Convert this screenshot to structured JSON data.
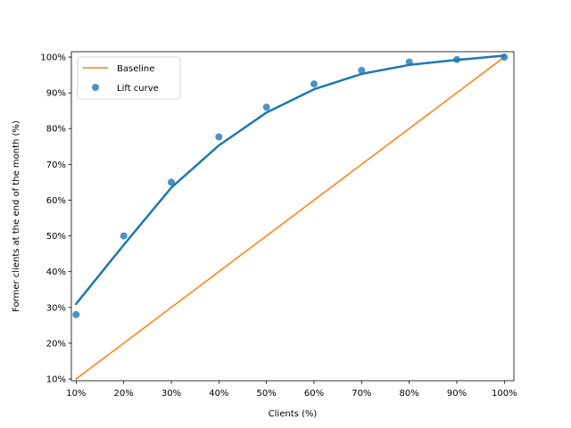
{
  "chart_data": {
    "type": "scatter",
    "xlabel": "Clients (%)",
    "ylabel": "Former clients at the end of the month (%)",
    "xlim": [
      9,
      102
    ],
    "ylim": [
      9.5,
      101.5
    ],
    "xticks": [
      10,
      20,
      30,
      40,
      50,
      60,
      70,
      80,
      90,
      100
    ],
    "yticks": [
      10,
      20,
      30,
      40,
      50,
      60,
      70,
      80,
      90,
      100
    ],
    "xtick_labels": [
      "10%",
      "20%",
      "30%",
      "40%",
      "50%",
      "60%",
      "70%",
      "80%",
      "90%",
      "100%"
    ],
    "ytick_labels": [
      "10%",
      "20%",
      "30%",
      "40%",
      "50%",
      "60%",
      "70%",
      "80%",
      "90%",
      "100%"
    ],
    "grid": false,
    "legend_position": "top-left",
    "series": [
      {
        "name": "Baseline",
        "kind": "line",
        "color": "#ff7f0e",
        "x": [
          10,
          100
        ],
        "y": [
          10,
          100
        ]
      },
      {
        "name": "Lift curve",
        "kind": "scatter",
        "color": "#1f77b4",
        "x": [
          10,
          20,
          30,
          40,
          50,
          60,
          70,
          80,
          90,
          100
        ],
        "y": [
          28,
          50,
          65,
          77.7,
          86,
          92.5,
          96.3,
          98.6,
          99.3,
          100
        ]
      },
      {
        "kind": "line",
        "color": "#1f77b4",
        "x": [
          10,
          20,
          30,
          40,
          50,
          60,
          70,
          80,
          90,
          100
        ],
        "y": [
          31,
          47.5,
          63.5,
          75.3,
          84.5,
          91,
          95.3,
          97.8,
          99.2,
          100.4
        ]
      }
    ]
  }
}
